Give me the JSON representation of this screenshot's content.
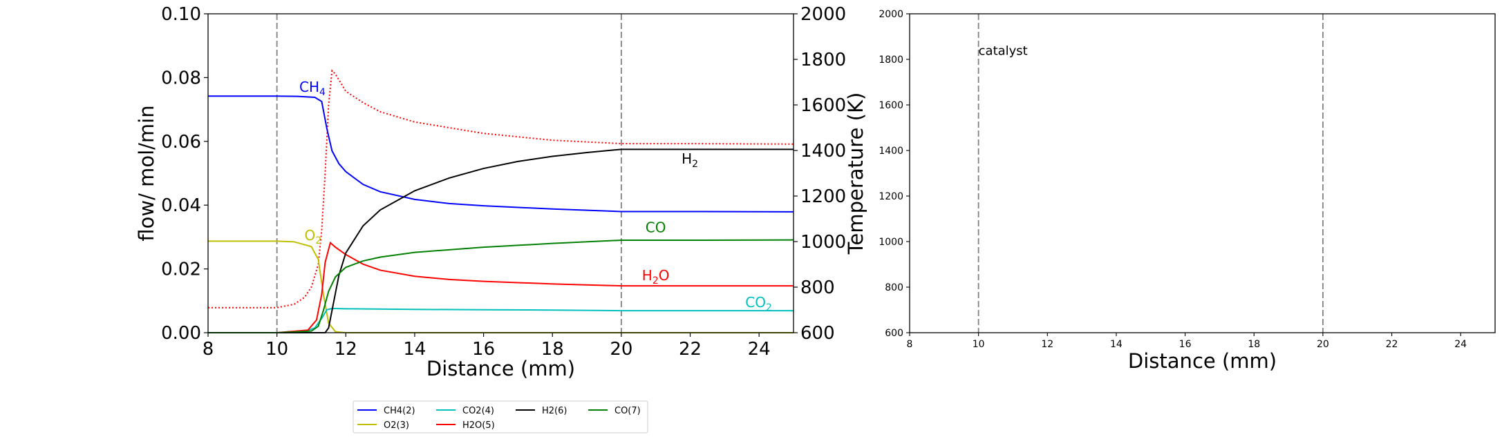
{
  "chart_data": [
    {
      "type": "line",
      "xlabel": "Distance (mm)",
      "ylabel": "flow/ mol/min",
      "y2label": "Temperature (K)",
      "xlim": [
        8,
        25
      ],
      "ylim": [
        0,
        0.1
      ],
      "y2lim": [
        600,
        2000
      ],
      "xticks": [
        "8",
        "10",
        "12",
        "14",
        "16",
        "18",
        "20",
        "22",
        "24"
      ],
      "yticks": [
        "0.00",
        "0.02",
        "0.04",
        "0.06",
        "0.08",
        "0.10"
      ],
      "y2ticks": [
        "600",
        "800",
        "1000",
        "1200",
        "1400",
        "1600",
        "1800",
        "2000"
      ],
      "catalyst_bounds": [
        10,
        20
      ],
      "series": [
        {
          "name": "CH4(2)",
          "color": "#0000ff",
          "x": [
            8,
            10,
            10.6,
            11.1,
            11.3,
            11.45,
            11.6,
            11.8,
            12.0,
            12.5,
            13,
            14,
            15,
            16,
            18,
            20,
            22,
            25
          ],
          "y": [
            0.0742,
            0.0742,
            0.0741,
            0.0738,
            0.0725,
            0.064,
            0.057,
            0.053,
            0.0505,
            0.0465,
            0.0442,
            0.0418,
            0.0405,
            0.0398,
            0.0388,
            0.038,
            0.038,
            0.0379
          ]
        },
        {
          "name": "O2(3)",
          "color": "#bfbf00",
          "x": [
            8,
            10,
            10.5,
            11.0,
            11.2,
            11.35,
            11.5,
            11.7,
            12.0,
            25
          ],
          "y": [
            0.0287,
            0.0287,
            0.0285,
            0.027,
            0.023,
            0.012,
            0.003,
            0.0003,
            0.0,
            0.0
          ]
        },
        {
          "name": "CO2(4)",
          "color": "#00bfbf",
          "x": [
            8,
            10,
            10.8,
            11.1,
            11.3,
            11.45,
            11.6,
            12.0,
            14,
            16,
            18,
            20,
            25
          ],
          "y": [
            0.0,
            0.0,
            0.0003,
            0.0015,
            0.0045,
            0.0072,
            0.0076,
            0.0075,
            0.0073,
            0.0072,
            0.0071,
            0.0069,
            0.0069
          ]
        },
        {
          "name": "H2O(5)",
          "color": "#ff0000",
          "x": [
            8,
            10,
            10.9,
            11.15,
            11.3,
            11.4,
            11.55,
            11.7,
            12.0,
            12.5,
            13,
            14,
            15,
            16,
            18,
            20,
            25
          ],
          "y": [
            0.0,
            0.0,
            0.0008,
            0.004,
            0.012,
            0.022,
            0.0282,
            0.0268,
            0.0245,
            0.0215,
            0.0196,
            0.0177,
            0.0167,
            0.0161,
            0.0153,
            0.0147,
            0.0147
          ]
        },
        {
          "name": "H2(6)",
          "color": "#000000",
          "x": [
            8,
            10,
            11.4,
            11.5,
            11.6,
            11.8,
            12.0,
            12.5,
            13,
            14,
            15,
            16,
            17,
            18,
            19,
            20,
            22,
            25
          ],
          "y": [
            0.0,
            0.0,
            0.0,
            0.0015,
            0.007,
            0.018,
            0.025,
            0.0335,
            0.0385,
            0.0445,
            0.0485,
            0.0515,
            0.0537,
            0.0553,
            0.0565,
            0.0575,
            0.0575,
            0.0575
          ]
        },
        {
          "name": "CO(7)",
          "color": "#008000",
          "x": [
            8,
            10,
            11.0,
            11.2,
            11.35,
            11.5,
            11.7,
            12.0,
            12.5,
            13,
            14,
            16,
            18,
            20,
            22,
            25
          ],
          "y": [
            0.0,
            0.0,
            0.0005,
            0.002,
            0.007,
            0.013,
            0.0175,
            0.0205,
            0.0225,
            0.0237,
            0.0252,
            0.0268,
            0.028,
            0.029,
            0.029,
            0.0291
          ]
        }
      ],
      "temperature_series": {
        "color": "#ff0000",
        "style": "dotted",
        "x": [
          8,
          10,
          10.5,
          10.8,
          11.0,
          11.2,
          11.3,
          11.4,
          11.5,
          11.6,
          11.7,
          12.0,
          12.5,
          13,
          14,
          16,
          18,
          20,
          22,
          25
        ],
        "y": [
          710,
          710,
          725,
          755,
          800,
          900,
          1050,
          1300,
          1600,
          1750,
          1735,
          1660,
          1610,
          1570,
          1525,
          1475,
          1445,
          1430,
          1430,
          1428
        ]
      },
      "annotations": [
        {
          "text": "CH",
          "sub": "4",
          "color": "#0000ff",
          "x": 10.65,
          "y": 0.0755
        },
        {
          "text": "O",
          "sub": "2",
          "color": "#bfbf00",
          "x": 10.8,
          "y": 0.029
        },
        {
          "text": "H",
          "sub": "2",
          "color": "#000000",
          "x": 21.75,
          "y": 0.053
        },
        {
          "text": "CO",
          "sub": "",
          "color": "#008000",
          "x": 20.7,
          "y": 0.0315
        },
        {
          "text": "H",
          "sub": "2",
          "suffix": "O",
          "color": "#ff0000",
          "x": 20.6,
          "y": 0.0165
        },
        {
          "text": "CO",
          "sub": "2",
          "color": "#00bfbf",
          "x": 23.6,
          "y": 0.008
        }
      ],
      "legend": {
        "placement": "below-center",
        "entries": [
          "CH4(2)",
          "CO2(4)",
          "H2(6)",
          "CO(7)",
          "O2(3)",
          "H2O(5)"
        ]
      }
    },
    {
      "type": "line",
      "xlabel": "Distance (mm)",
      "xlim": [
        8,
        25
      ],
      "ylim": [
        600,
        2000
      ],
      "xticks": [
        "8",
        "10",
        "12",
        "14",
        "16",
        "18",
        "20",
        "22",
        "24"
      ],
      "yticks": [
        "600",
        "800",
        "1000",
        "1200",
        "1400",
        "1600",
        "1800",
        "2000"
      ],
      "catalyst_bounds": [
        10,
        20
      ],
      "annotation": "catalyst",
      "series": []
    }
  ]
}
